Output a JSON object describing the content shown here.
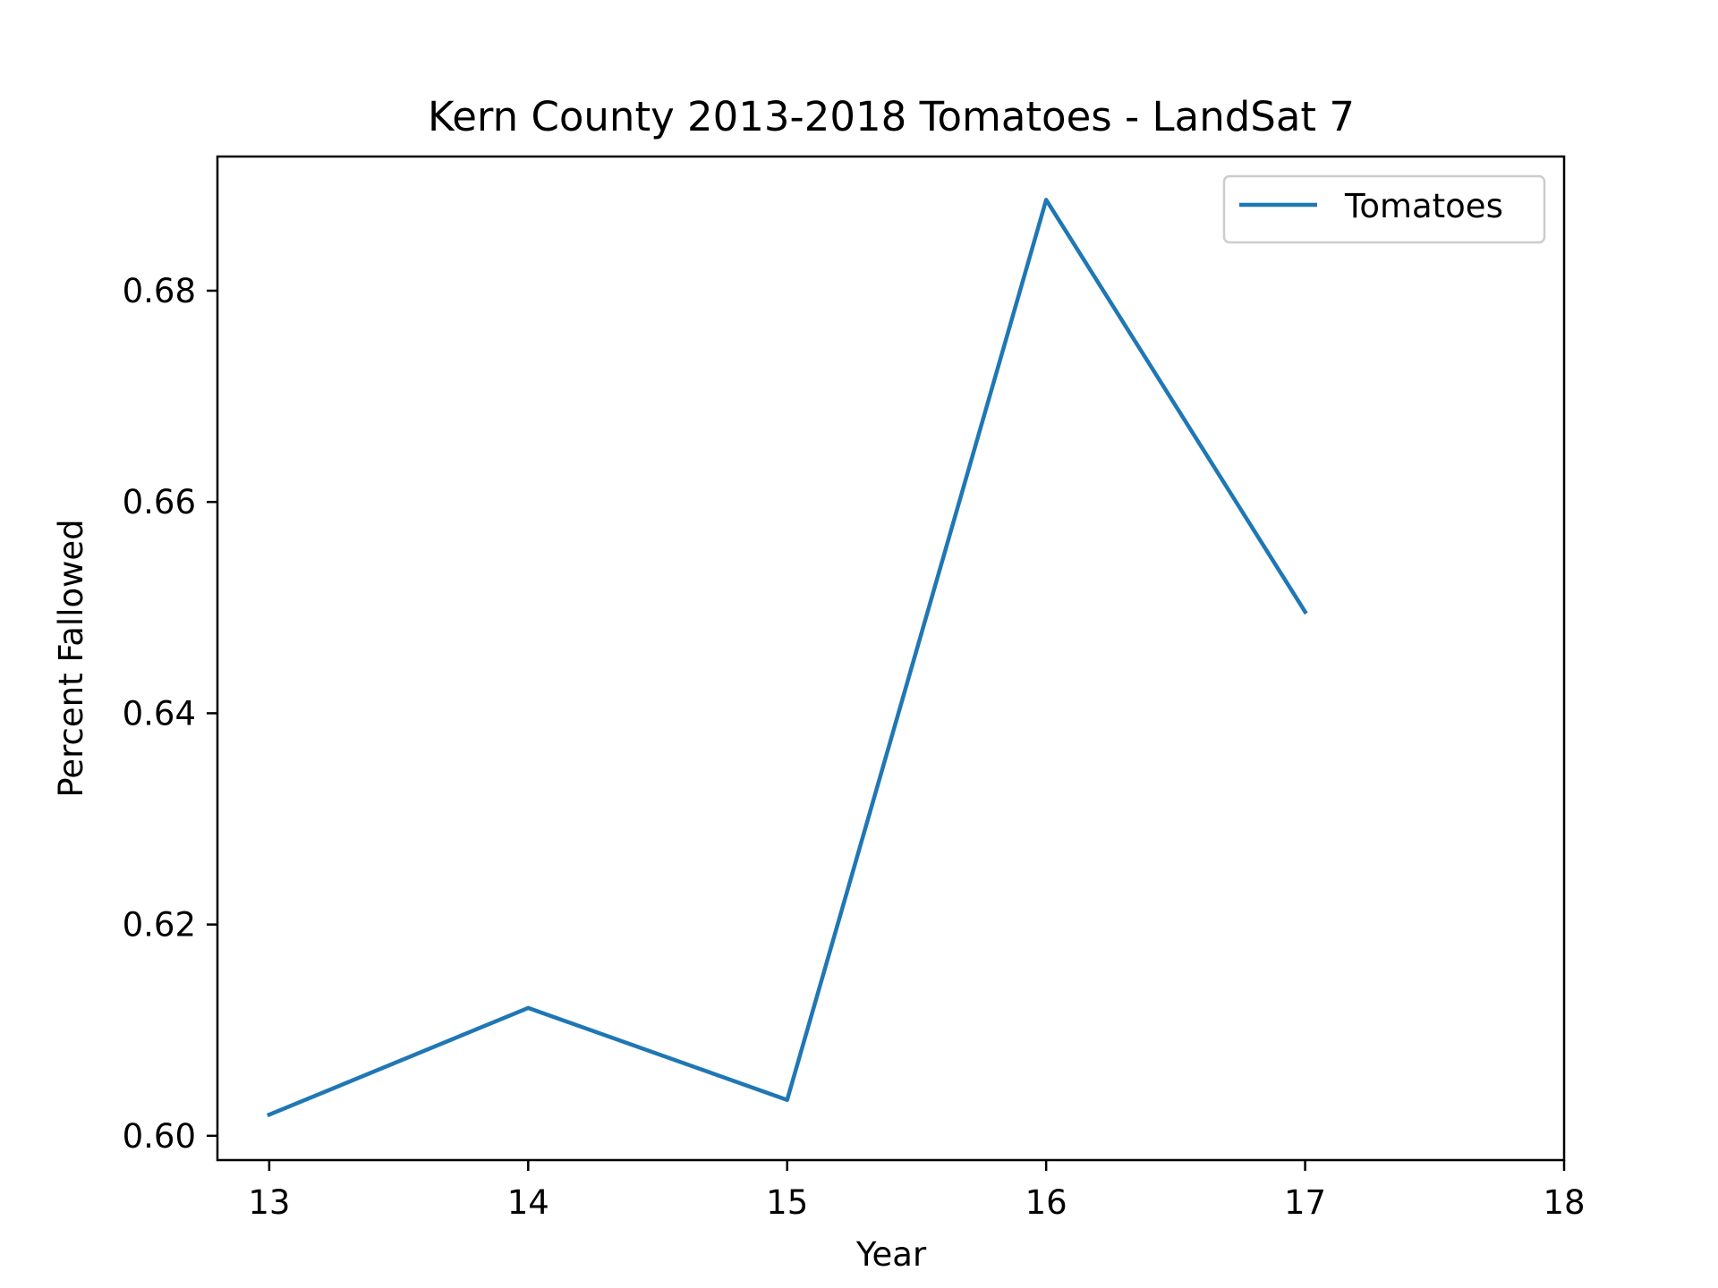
{
  "chart_data": {
    "type": "line",
    "title": "Kern County 2013-2018 Tomatoes - LandSat 7",
    "xlabel": "Year",
    "ylabel": "Percent Fallowed",
    "xlim": [
      12.8,
      18.0
    ],
    "ylim": [
      0.5977,
      0.6927
    ],
    "x_ticks": [
      {
        "value": 13,
        "label": "13"
      },
      {
        "value": 14,
        "label": "14"
      },
      {
        "value": 15,
        "label": "15"
      },
      {
        "value": 16,
        "label": "16"
      },
      {
        "value": 17,
        "label": "17"
      },
      {
        "value": 18,
        "label": "18"
      }
    ],
    "y_ticks": [
      {
        "value": 0.6,
        "label": "0.60"
      },
      {
        "value": 0.62,
        "label": "0.62"
      },
      {
        "value": 0.64,
        "label": "0.64"
      },
      {
        "value": 0.66,
        "label": "0.66"
      },
      {
        "value": 0.68,
        "label": "0.68"
      }
    ],
    "series": [
      {
        "name": "Tomatoes",
        "color": "#1f77b4",
        "x": [
          13,
          14,
          15,
          16,
          17
        ],
        "y": [
          0.602,
          0.6121,
          0.6034,
          0.6886,
          0.6496
        ]
      }
    ],
    "legend": {
      "position": "top-right"
    },
    "grid": false
  }
}
